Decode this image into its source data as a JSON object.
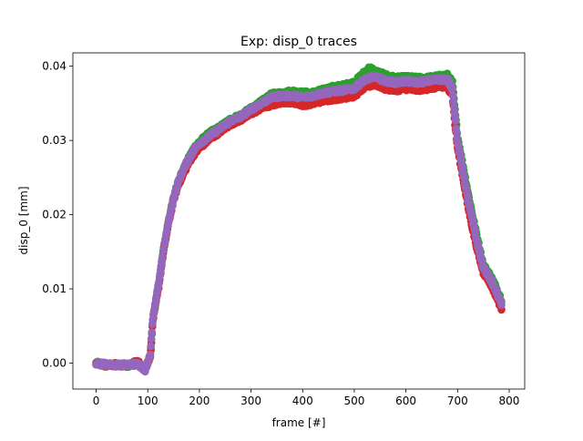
{
  "chart_data": {
    "type": "scatter",
    "title": "Exp: disp_0 traces",
    "xlabel": "frame [#]",
    "ylabel": "disp_0 [mm]",
    "xlim": [
      -45,
      830
    ],
    "ylim": [
      -0.0035,
      0.0418
    ],
    "xticks": [
      0,
      100,
      200,
      300,
      400,
      500,
      600,
      700,
      800
    ],
    "xtick_labels": [
      "0",
      "100",
      "200",
      "300",
      "400",
      "500",
      "600",
      "700",
      "800"
    ],
    "yticks": [
      0.0,
      0.01,
      0.02,
      0.03,
      0.04
    ],
    "ytick_labels": [
      "0.00",
      "0.01",
      "0.02",
      "0.03",
      "0.04"
    ],
    "grid": false,
    "legend": false,
    "frames": [
      0,
      785
    ],
    "series": [
      {
        "color": "#2ca02c",
        "points": [
          [
            0,
            0.0
          ],
          [
            20,
            -0.0003
          ],
          [
            40,
            -0.0002
          ],
          [
            60,
            -0.0003
          ],
          [
            80,
            -0.0001
          ],
          [
            95,
            -0.0008
          ],
          [
            105,
            0.001
          ],
          [
            110,
            0.006
          ],
          [
            120,
            0.01
          ],
          [
            130,
            0.015
          ],
          [
            140,
            0.019
          ],
          [
            150,
            0.0222
          ],
          [
            160,
            0.0248
          ],
          [
            170,
            0.0262
          ],
          [
            180,
            0.0277
          ],
          [
            190,
            0.029
          ],
          [
            200,
            0.0298
          ],
          [
            220,
            0.031
          ],
          [
            240,
            0.0318
          ],
          [
            260,
            0.0328
          ],
          [
            280,
            0.0334
          ],
          [
            300,
            0.0343
          ],
          [
            320,
            0.0352
          ],
          [
            340,
            0.0362
          ],
          [
            360,
            0.0364
          ],
          [
            380,
            0.0366
          ],
          [
            400,
            0.0364
          ],
          [
            420,
            0.0364
          ],
          [
            440,
            0.0368
          ],
          [
            460,
            0.0372
          ],
          [
            480,
            0.0374
          ],
          [
            500,
            0.0378
          ],
          [
            520,
            0.0392
          ],
          [
            530,
            0.0398
          ],
          [
            540,
            0.0393
          ],
          [
            560,
            0.0388
          ],
          [
            580,
            0.0384
          ],
          [
            600,
            0.0385
          ],
          [
            620,
            0.0384
          ],
          [
            640,
            0.0384
          ],
          [
            660,
            0.0386
          ],
          [
            680,
            0.0388
          ],
          [
            690,
            0.0378
          ],
          [
            695,
            0.034
          ],
          [
            700,
            0.0305
          ],
          [
            710,
            0.0268
          ],
          [
            720,
            0.023
          ],
          [
            730,
            0.0195
          ],
          [
            740,
            0.0163
          ],
          [
            750,
            0.0132
          ],
          [
            760,
            0.0122
          ],
          [
            770,
            0.0109
          ],
          [
            780,
            0.0093
          ],
          [
            785,
            0.0085
          ]
        ]
      },
      {
        "color": "#d62728",
        "points": [
          [
            0,
            0.0
          ],
          [
            20,
            -0.0003
          ],
          [
            40,
            -0.0002
          ],
          [
            60,
            -0.0003
          ],
          [
            80,
            0.0002
          ],
          [
            95,
            -0.0008
          ],
          [
            105,
            0.001
          ],
          [
            110,
            0.0058
          ],
          [
            120,
            0.0098
          ],
          [
            130,
            0.0148
          ],
          [
            140,
            0.0188
          ],
          [
            150,
            0.022
          ],
          [
            160,
            0.0242
          ],
          [
            170,
            0.0256
          ],
          [
            180,
            0.0271
          ],
          [
            190,
            0.0282
          ],
          [
            200,
            0.029
          ],
          [
            220,
            0.0302
          ],
          [
            240,
            0.0312
          ],
          [
            260,
            0.0322
          ],
          [
            280,
            0.0328
          ],
          [
            300,
            0.0336
          ],
          [
            320,
            0.0344
          ],
          [
            340,
            0.0348
          ],
          [
            360,
            0.0352
          ],
          [
            380,
            0.0352
          ],
          [
            400,
            0.0348
          ],
          [
            420,
            0.035
          ],
          [
            440,
            0.0354
          ],
          [
            460,
            0.0356
          ],
          [
            480,
            0.0358
          ],
          [
            500,
            0.036
          ],
          [
            520,
            0.0372
          ],
          [
            540,
            0.0376
          ],
          [
            560,
            0.037
          ],
          [
            580,
            0.0368
          ],
          [
            600,
            0.037
          ],
          [
            620,
            0.0368
          ],
          [
            640,
            0.037
          ],
          [
            660,
            0.0372
          ],
          [
            680,
            0.0372
          ],
          [
            690,
            0.0362
          ],
          [
            695,
            0.0322
          ],
          [
            700,
            0.029
          ],
          [
            710,
            0.0252
          ],
          [
            720,
            0.0212
          ],
          [
            730,
            0.0178
          ],
          [
            740,
            0.0148
          ],
          [
            750,
            0.0122
          ],
          [
            760,
            0.0112
          ],
          [
            770,
            0.0098
          ],
          [
            780,
            0.0082
          ],
          [
            785,
            0.0074
          ]
        ]
      },
      {
        "color": "#9467bd",
        "points": [
          [
            0,
            0.0
          ],
          [
            20,
            -0.0002
          ],
          [
            40,
            -0.0003
          ],
          [
            60,
            -0.0002
          ],
          [
            80,
            -0.0001
          ],
          [
            95,
            -0.0009
          ],
          [
            105,
            0.0012
          ],
          [
            110,
            0.006
          ],
          [
            120,
            0.0102
          ],
          [
            130,
            0.015
          ],
          [
            140,
            0.019
          ],
          [
            150,
            0.0222
          ],
          [
            160,
            0.0246
          ],
          [
            170,
            0.0262
          ],
          [
            180,
            0.0276
          ],
          [
            190,
            0.0288
          ],
          [
            200,
            0.0296
          ],
          [
            220,
            0.0306
          ],
          [
            240,
            0.0316
          ],
          [
            260,
            0.0326
          ],
          [
            280,
            0.0332
          ],
          [
            300,
            0.0342
          ],
          [
            320,
            0.035
          ],
          [
            340,
            0.0358
          ],
          [
            360,
            0.036
          ],
          [
            380,
            0.036
          ],
          [
            400,
            0.0358
          ],
          [
            420,
            0.036
          ],
          [
            440,
            0.0364
          ],
          [
            460,
            0.0366
          ],
          [
            480,
            0.0368
          ],
          [
            500,
            0.037
          ],
          [
            520,
            0.0382
          ],
          [
            540,
            0.0386
          ],
          [
            560,
            0.038
          ],
          [
            580,
            0.0378
          ],
          [
            600,
            0.038
          ],
          [
            620,
            0.0378
          ],
          [
            640,
            0.038
          ],
          [
            660,
            0.0382
          ],
          [
            680,
            0.0382
          ],
          [
            690,
            0.037
          ],
          [
            695,
            0.0332
          ],
          [
            700,
            0.0298
          ],
          [
            710,
            0.026
          ],
          [
            720,
            0.0222
          ],
          [
            730,
            0.0188
          ],
          [
            740,
            0.0156
          ],
          [
            750,
            0.0128
          ],
          [
            760,
            0.0118
          ],
          [
            770,
            0.0104
          ],
          [
            780,
            0.0088
          ],
          [
            785,
            0.008
          ]
        ]
      }
    ]
  }
}
